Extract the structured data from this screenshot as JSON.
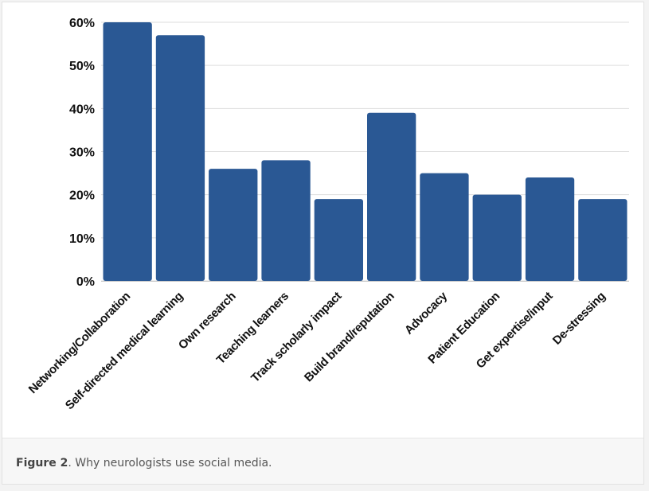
{
  "chart_data": {
    "type": "bar",
    "categories": [
      "Networking/Collaboration",
      "Self-directed medical learning",
      "Own research",
      "Teaching learners",
      "Track scholarly impact",
      "Build brand/reputation",
      "Advocacy",
      "Patient Education",
      "Get expertise/input",
      "De-stressing"
    ],
    "values": [
      60,
      57,
      26,
      28,
      19,
      39,
      25,
      20,
      24,
      19
    ],
    "y_ticks": [
      "0%",
      "10%",
      "20%",
      "30%",
      "40%",
      "50%",
      "60%"
    ],
    "ylim": [
      0,
      60
    ],
    "grid": true,
    "bar_color": "#2a5894",
    "title": "",
    "xlabel": "",
    "ylabel": ""
  },
  "caption": {
    "label": "Figure 2",
    "text": ". Why neurologists use social media."
  }
}
